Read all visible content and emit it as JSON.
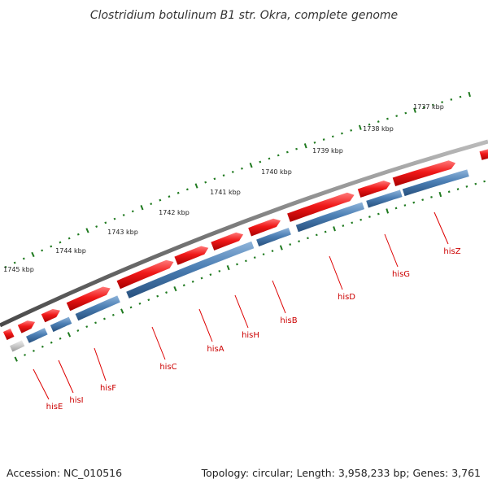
{
  "title": "Clostridium botulinum B1 str. Okra, complete genome",
  "footer": {
    "accession": "Accession: NC_010516",
    "summary": "Topology: circular; Length: 3,958,233 bp; Genes: 3,761"
  },
  "colors": {
    "backbone": "#777777",
    "cds_forward": "#e81414",
    "gene_reverse": "#3f72a8",
    "unannotated": "#c4c4c4",
    "tick": "#1f7a1f",
    "gene_label": "#cc0000",
    "leader_line": "#dd0000"
  },
  "scale": {
    "labels": [
      "1737 kbp",
      "1738 kbp",
      "1739 kbp",
      "1740 kbp",
      "1741 kbp",
      "1742 kbp",
      "1743 kbp",
      "1744 kbp",
      "1745 kbp"
    ]
  },
  "genes": [
    {
      "name": "hisZ"
    },
    {
      "name": "hisG"
    },
    {
      "name": "hisD"
    },
    {
      "name": "hisB"
    },
    {
      "name": "hisH"
    },
    {
      "name": "hisA"
    },
    {
      "name": "hisC"
    },
    {
      "name": "hisF"
    },
    {
      "name": "hisI"
    },
    {
      "name": "hisE"
    }
  ]
}
